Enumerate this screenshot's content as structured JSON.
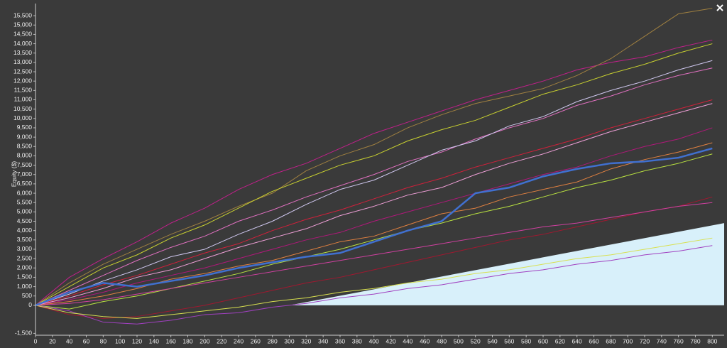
{
  "chart_data": {
    "type": "line",
    "ylabel": "Equity ($)",
    "x": [
      0,
      40,
      80,
      120,
      160,
      200,
      240,
      280,
      320,
      360,
      400,
      440,
      480,
      520,
      560,
      600,
      640,
      680,
      720,
      760,
      800
    ],
    "xlim": [
      0,
      814
    ],
    "ylim": [
      -1600,
      16150
    ],
    "xticks": [
      0,
      20,
      40,
      60,
      80,
      100,
      120,
      140,
      160,
      180,
      200,
      220,
      240,
      260,
      280,
      300,
      320,
      340,
      360,
      380,
      400,
      420,
      440,
      460,
      480,
      500,
      520,
      540,
      560,
      580,
      600,
      620,
      640,
      660,
      680,
      700,
      720,
      740,
      760,
      780,
      800
    ],
    "yticks": [
      {
        "value": -1500,
        "label": "-1,500"
      },
      0,
      500,
      {
        "value": 1000,
        "label": "1,000"
      },
      {
        "value": 1500,
        "label": "1,500"
      },
      {
        "value": 2000,
        "label": "2,000"
      },
      {
        "value": 2500,
        "label": "2,500"
      },
      {
        "value": 3000,
        "label": "3,000"
      },
      {
        "value": 3500,
        "label": "3,500"
      },
      {
        "value": 4000,
        "label": "4,000"
      },
      {
        "value": 4500,
        "label": "4,500"
      },
      {
        "value": 5000,
        "label": "5,000"
      },
      {
        "value": 5500,
        "label": "5,500"
      },
      {
        "value": 6000,
        "label": "6,000"
      },
      {
        "value": 6500,
        "label": "6,500"
      },
      {
        "value": 7000,
        "label": "7,000"
      },
      {
        "value": 7500,
        "label": "7,500"
      },
      {
        "value": 8000,
        "label": "8,000"
      },
      {
        "value": 8500,
        "label": "8,500"
      },
      {
        "value": 9000,
        "label": "9,000"
      },
      {
        "value": 9500,
        "label": "9,500"
      },
      {
        "value": 10000,
        "label": "10,000"
      },
      {
        "value": 10500,
        "label": "10,500"
      },
      {
        "value": 11000,
        "label": "11,000"
      },
      {
        "value": 11500,
        "label": "11,500"
      },
      {
        "value": 12000,
        "label": "12,000"
      },
      {
        "value": 12500,
        "label": "12,500"
      },
      {
        "value": 13000,
        "label": "13,000"
      },
      {
        "value": 13500,
        "label": "13,500"
      },
      {
        "value": 14000,
        "label": "14,000"
      },
      {
        "value": 14500,
        "label": "14,500"
      },
      {
        "value": 15000,
        "label": "15,000"
      },
      {
        "value": 15500,
        "label": "15,500"
      }
    ],
    "area": {
      "color": "#d8f0fa",
      "x": [
        300,
        814
      ],
      "values": [
        0,
        4400
      ]
    },
    "series": [
      {
        "color": "#c0208a",
        "values": [
          0,
          1500,
          2500,
          3400,
          4400,
          5200,
          6200,
          7000,
          7600,
          8400,
          9200,
          9800,
          10400,
          11000,
          11500,
          12000,
          12600,
          13000,
          13300,
          13800,
          14200
        ]
      },
      {
        "color": "#a08040",
        "values": [
          0,
          1200,
          2200,
          3000,
          3800,
          4500,
          5300,
          6000,
          7200,
          8000,
          8600,
          9500,
          10200,
          10800,
          11200,
          11600,
          12300,
          13200,
          14400,
          15600,
          15900
        ]
      },
      {
        "color": "#c8d030",
        "values": [
          0,
          1000,
          2000,
          2700,
          3600,
          4300,
          5200,
          6100,
          6800,
          7500,
          8000,
          8800,
          9400,
          9900,
          10600,
          11300,
          11800,
          12400,
          12900,
          13500,
          14000
        ]
      },
      {
        "color": "#e070c0",
        "values": [
          0,
          800,
          1600,
          2400,
          3100,
          3700,
          4500,
          5100,
          5800,
          6400,
          7000,
          7700,
          8200,
          8900,
          9500,
          10000,
          10700,
          11200,
          11800,
          12300,
          12700
        ]
      },
      {
        "color": "#d0203a",
        "values": [
          0,
          500,
          1100,
          1600,
          2200,
          2800,
          3300,
          4000,
          4600,
          5100,
          5700,
          6300,
          6800,
          7400,
          7900,
          8400,
          8900,
          9500,
          10000,
          10500,
          11000
        ]
      },
      {
        "color": "#d0c8f0",
        "values": [
          0,
          600,
          1300,
          1900,
          2600,
          3000,
          3800,
          4500,
          5400,
          6200,
          6700,
          7500,
          8300,
          8800,
          9600,
          10100,
          10900,
          11500,
          12000,
          12600,
          13100
        ]
      },
      {
        "color": "#b0187a",
        "values": [
          0,
          300,
          700,
          1200,
          1600,
          2000,
          2500,
          3000,
          3500,
          3900,
          4500,
          5000,
          5500,
          6000,
          6500,
          7000,
          7400,
          8000,
          8500,
          8900,
          9500
        ]
      },
      {
        "color": "#b8e040",
        "values": [
          0,
          -200,
          200,
          500,
          900,
          1300,
          1700,
          2200,
          2600,
          3000,
          3500,
          4000,
          4400,
          4900,
          5300,
          5800,
          6300,
          6700,
          7200,
          7600,
          8100
        ]
      },
      {
        "color": "#a01830",
        "values": [
          0,
          -500,
          -700,
          -600,
          -300,
          0,
          400,
          800,
          1200,
          1500,
          1900,
          2300,
          2700,
          3100,
          3500,
          3800,
          4200,
          4600,
          5000,
          5300,
          5800
        ]
      },
      {
        "color": "#a040c0",
        "values": [
          0,
          -300,
          -900,
          -1000,
          -800,
          -500,
          -400,
          -100,
          100,
          400,
          600,
          900,
          1100,
          1400,
          1700,
          1900,
          2200,
          2400,
          2700,
          2900,
          3200
        ]
      },
      {
        "color": "#e08040",
        "values": [
          0,
          200,
          500,
          900,
          1400,
          1700,
          2100,
          2400,
          2900,
          3400,
          3700,
          4300,
          4900,
          5200,
          5800,
          6200,
          6600,
          7300,
          7800,
          8200,
          8700
        ]
      },
      {
        "color": "#f0a0d8",
        "values": [
          0,
          400,
          900,
          1500,
          1900,
          2500,
          3100,
          3600,
          4100,
          4800,
          5300,
          5900,
          6300,
          7000,
          7600,
          8100,
          8700,
          9300,
          9800,
          10300,
          10800
        ]
      },
      {
        "color": "#d040a0",
        "values": [
          0,
          100,
          300,
          600,
          900,
          1200,
          1500,
          1800,
          2100,
          2400,
          2700,
          3000,
          3300,
          3600,
          3900,
          4200,
          4400,
          4700,
          5000,
          5300,
          5500
        ]
      },
      {
        "color": "#d8e050",
        "values": [
          0,
          -400,
          -600,
          -700,
          -500,
          -300,
          -100,
          200,
          400,
          700,
          900,
          1200,
          1400,
          1700,
          1900,
          2200,
          2500,
          2700,
          3000,
          3300,
          3600
        ]
      },
      {
        "color": "#4070d0",
        "width": 2.5,
        "values": [
          0,
          700,
          1200,
          1000,
          1300,
          1600,
          2000,
          2300,
          2600,
          2800,
          3400,
          4000,
          4500,
          6000,
          6300,
          6900,
          7300,
          7600,
          7700,
          7900,
          8400
        ]
      }
    ]
  }
}
